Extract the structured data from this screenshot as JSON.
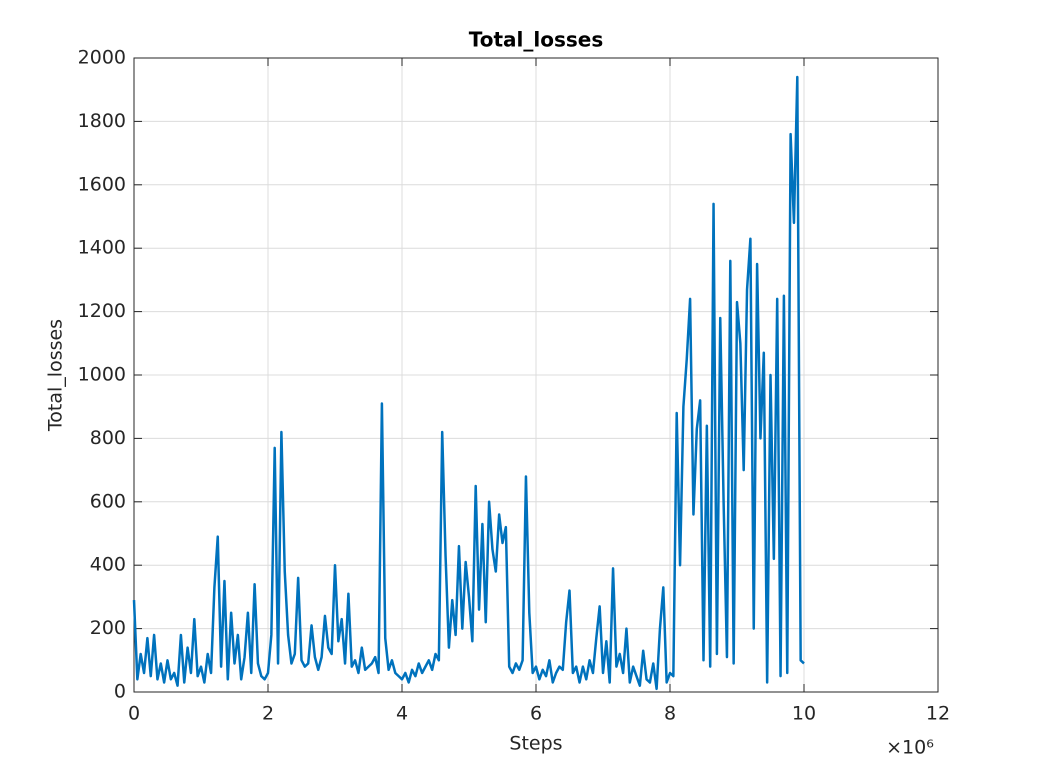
{
  "chart_data": {
    "type": "line",
    "title": "Total_losses",
    "x_label": "Steps",
    "y_label": "Total_losses",
    "x_multiplier": "×10⁶",
    "xlim": [
      0,
      12000000
    ],
    "xticks": [
      0,
      {
        "value": 2000000,
        "label": "2"
      },
      {
        "value": 4000000,
        "label": "4"
      },
      {
        "value": 6000000,
        "label": "6"
      },
      {
        "value": 8000000,
        "label": "8"
      },
      {
        "value": 10000000,
        "label": "10"
      },
      {
        "value": 12000000,
        "label": "12"
      }
    ],
    "ylim": [
      0,
      2000
    ],
    "yticks": [
      0,
      200,
      400,
      600,
      800,
      1000,
      1200,
      1400,
      1600,
      1800,
      2000
    ],
    "grid": true,
    "x": [
      0,
      50000,
      100000,
      150000,
      200000,
      250000,
      300000,
      350000,
      400000,
      450000,
      500000,
      550000,
      600000,
      650000,
      700000,
      750000,
      800000,
      850000,
      900000,
      950000,
      1000000,
      1050000,
      1100000,
      1150000,
      1200000,
      1250000,
      1300000,
      1350000,
      1400000,
      1450000,
      1500000,
      1550000,
      1600000,
      1650000,
      1700000,
      1750000,
      1800000,
      1850000,
      1900000,
      1950000,
      2000000,
      2050000,
      2100000,
      2150000,
      2200000,
      2250000,
      2300000,
      2350000,
      2400000,
      2450000,
      2500000,
      2550000,
      2600000,
      2650000,
      2700000,
      2750000,
      2800000,
      2850000,
      2900000,
      2950000,
      3000000,
      3050000,
      3100000,
      3150000,
      3200000,
      3250000,
      3300000,
      3350000,
      3400000,
      3450000,
      3500000,
      3550000,
      3600000,
      3650000,
      3700000,
      3750000,
      3800000,
      3850000,
      3900000,
      3950000,
      4000000,
      4050000,
      4100000,
      4150000,
      4200000,
      4250000,
      4300000,
      4350000,
      4400000,
      4450000,
      4500000,
      4550000,
      4600000,
      4650000,
      4700000,
      4750000,
      4800000,
      4850000,
      4900000,
      4950000,
      5000000,
      5050000,
      5100000,
      5150000,
      5200000,
      5250000,
      5300000,
      5350000,
      5400000,
      5450000,
      5500000,
      5550000,
      5600000,
      5650000,
      5700000,
      5750000,
      5800000,
      5850000,
      5900000,
      5950000,
      6000000,
      6050000,
      6100000,
      6150000,
      6200000,
      6250000,
      6300000,
      6350000,
      6400000,
      6450000,
      6500000,
      6550000,
      6600000,
      6650000,
      6700000,
      6750000,
      6800000,
      6850000,
      6900000,
      6950000,
      7000000,
      7050000,
      7100000,
      7150000,
      7200000,
      7250000,
      7300000,
      7350000,
      7400000,
      7450000,
      7500000,
      7550000,
      7600000,
      7650000,
      7700000,
      7750000,
      7800000,
      7850000,
      7900000,
      7950000,
      8000000,
      8050000,
      8100000,
      8150000,
      8200000,
      8250000,
      8300000,
      8350000,
      8400000,
      8450000,
      8500000,
      8550000,
      8600000,
      8650000,
      8700000,
      8750000,
      8800000,
      8850000,
      8900000,
      8950000,
      9000000,
      9050000,
      9100000,
      9150000,
      9200000,
      9250000,
      9300000,
      9350000,
      9400000,
      9450000,
      9500000,
      9550000,
      9600000,
      9650000,
      9700000,
      9750000,
      9800000,
      9850000,
      9900000,
      9950000,
      10000000
    ],
    "series": [
      {
        "name": "Total_losses",
        "color": "#0072bd",
        "values": [
          290,
          40,
          120,
          60,
          170,
          50,
          180,
          40,
          90,
          30,
          100,
          40,
          60,
          20,
          180,
          30,
          140,
          60,
          230,
          50,
          80,
          30,
          120,
          60,
          330,
          490,
          80,
          350,
          40,
          250,
          90,
          180,
          40,
          110,
          250,
          60,
          340,
          90,
          50,
          40,
          60,
          180,
          770,
          90,
          820,
          380,
          180,
          90,
          120,
          360,
          100,
          80,
          90,
          210,
          110,
          70,
          110,
          240,
          140,
          120,
          400,
          160,
          230,
          90,
          310,
          80,
          100,
          60,
          140,
          70,
          80,
          90,
          110,
          60,
          910,
          170,
          70,
          100,
          60,
          50,
          40,
          60,
          30,
          70,
          50,
          90,
          60,
          80,
          100,
          70,
          120,
          100,
          820,
          430,
          140,
          290,
          180,
          460,
          200,
          410,
          300,
          160,
          650,
          260,
          530,
          220,
          600,
          450,
          380,
          560,
          470,
          520,
          80,
          60,
          90,
          70,
          100,
          680,
          250,
          60,
          80,
          40,
          70,
          50,
          100,
          30,
          60,
          80,
          70,
          220,
          320,
          60,
          80,
          30,
          80,
          40,
          100,
          60,
          170,
          270,
          60,
          160,
          30,
          390,
          80,
          120,
          60,
          200,
          30,
          80,
          50,
          20,
          130,
          40,
          30,
          90,
          10,
          200,
          330,
          30,
          60,
          50,
          880,
          400,
          900,
          1050,
          1240,
          560,
          830,
          920,
          100,
          840,
          80,
          1540,
          120,
          1180,
          600,
          110,
          1360,
          90,
          1230,
          1100,
          700,
          1270,
          1430,
          200,
          1350,
          800,
          1070,
          30,
          1000,
          420,
          1240,
          50,
          1250,
          60,
          1760,
          1480,
          1940,
          100,
          90
        ]
      }
    ]
  }
}
